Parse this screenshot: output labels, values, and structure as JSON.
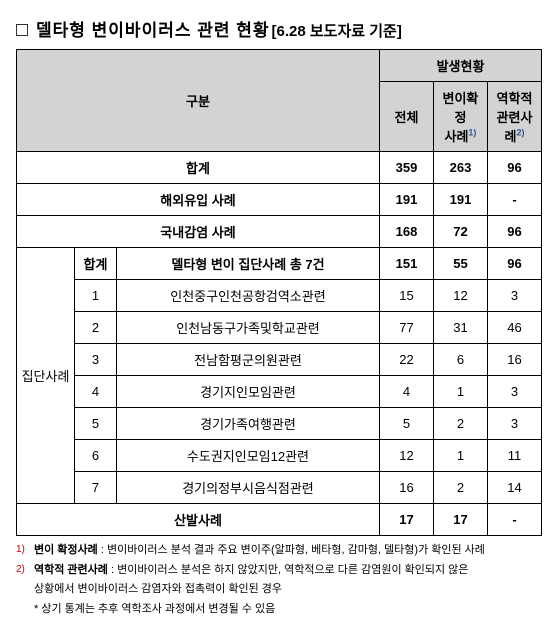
{
  "title": {
    "main": "델타형 변이바이러스 관련 현황",
    "sub": "[6.28 보도자료 기준]"
  },
  "header": {
    "classification": "구분",
    "status": "발생현황",
    "total": "전체",
    "confirmed": "변이확정\n사례",
    "related": "역학적\n관련사례",
    "sup1": "1)",
    "sup2": "2)"
  },
  "summary": {
    "total_label": "합계",
    "total": {
      "all": "359",
      "confirmed": "263",
      "related": "96"
    },
    "overseas_label": "해외유입 사례",
    "overseas": {
      "all": "191",
      "confirmed": "191",
      "related": "-"
    },
    "domestic_label": "국내감염 사례",
    "domestic": {
      "all": "168",
      "confirmed": "72",
      "related": "96"
    }
  },
  "cluster": {
    "group_label": "집단사례",
    "subtotal_label": "합계",
    "subtotal_desc": "델타형 변이 집단사례 총 7건",
    "subtotal": {
      "all": "151",
      "confirmed": "55",
      "related": "96"
    },
    "rows": [
      {
        "n": "1",
        "desc": "인천중구인천공항검역소관련",
        "all": "15",
        "confirmed": "12",
        "related": "3"
      },
      {
        "n": "2",
        "desc": "인천남동구가족및학교관련",
        "all": "77",
        "confirmed": "31",
        "related": "46"
      },
      {
        "n": "3",
        "desc": "전남함평군의원관련",
        "all": "22",
        "confirmed": "6",
        "related": "16"
      },
      {
        "n": "4",
        "desc": "경기지인모임관련",
        "all": "4",
        "confirmed": "1",
        "related": "3"
      },
      {
        "n": "5",
        "desc": "경기가족여행관련",
        "all": "5",
        "confirmed": "2",
        "related": "3"
      },
      {
        "n": "6",
        "desc": "수도권지인모임12관련",
        "all": "12",
        "confirmed": "1",
        "related": "11"
      },
      {
        "n": "7",
        "desc": "경기의정부시음식점관련",
        "all": "16",
        "confirmed": "2",
        "related": "14"
      }
    ],
    "sporadic_label": "산발사례",
    "sporadic": {
      "all": "17",
      "confirmed": "17",
      "related": "-"
    }
  },
  "footnotes": {
    "n1_marker": "1)",
    "n1_label": "변이 확정사례",
    "n1_text": " : 변이바이러스 분석 결과 주요 변이주(알파형, 베타형, 감마형, 델타형)가 확인된 사례",
    "n2_marker": "2)",
    "n2_label": "역학적 관련사례",
    "n2_text_a": " : 변이바이러스 분석은 하지 않았지만, 역학적으로 다른 감염원이 확인되지 않은",
    "n2_text_b": "상황에서 변이바이러스 감염자와 접촉력이 확인된 경우",
    "star": "* 상기 통계는 추후 역학조사 과정에서 변경될 수 있음"
  }
}
